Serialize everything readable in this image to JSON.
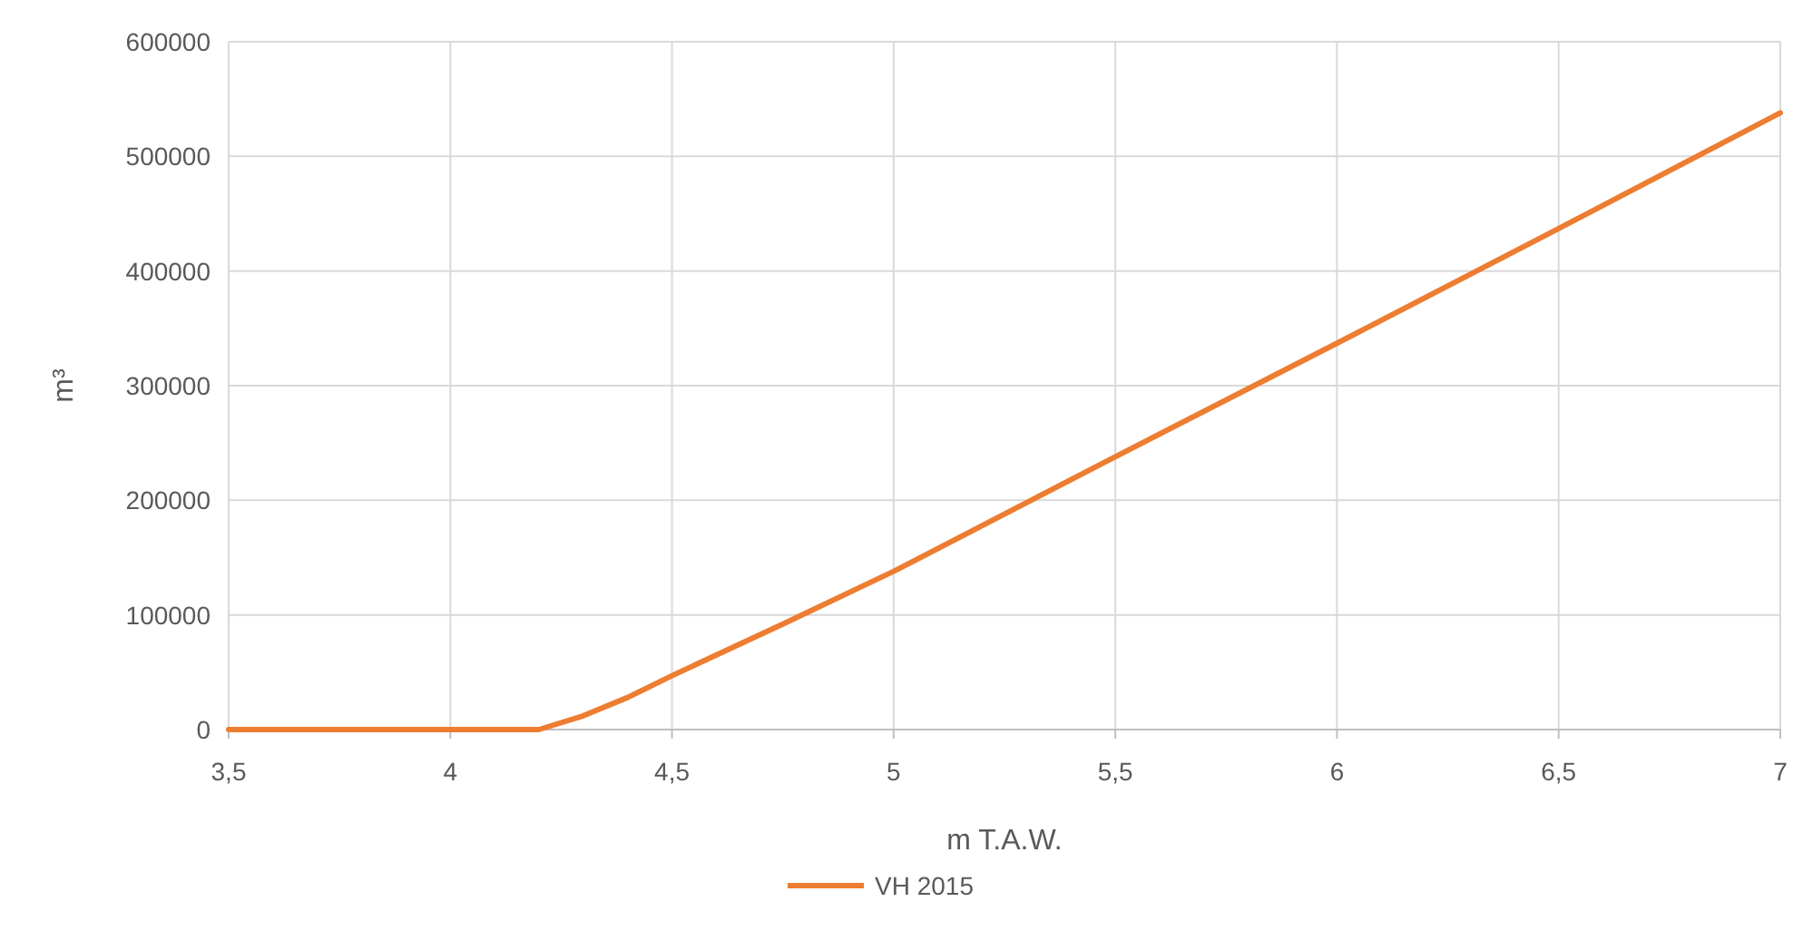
{
  "chart_data": {
    "type": "line",
    "xlabel": "m T.A.W.",
    "ylabel": "m³",
    "xlim": [
      3.5,
      7
    ],
    "xticks": [
      {
        "value": 3.5,
        "label": "3,5"
      },
      4,
      {
        "value": 4.5,
        "label": "4,5"
      },
      5,
      {
        "value": 5.5,
        "label": "5,5"
      },
      6,
      {
        "value": 6.5,
        "label": "6,5"
      },
      7
    ],
    "ylim": [
      0,
      600000
    ],
    "yticks": [
      0,
      100000,
      200000,
      300000,
      400000,
      500000,
      600000
    ],
    "grid": true,
    "legend": "bottom",
    "marker": "none",
    "line_style": "solid",
    "series": [
      {
        "name": "VH 2015",
        "color": "#ed7d31",
        "x": [
          3.5,
          4.2,
          4.3,
          4.4,
          4.5,
          4.75,
          5,
          5.5,
          6,
          6.5,
          7
        ],
        "values": [
          0,
          0,
          12000,
          28000,
          47000,
          92000,
          138000,
          238000,
          337000,
          437000,
          538000
        ]
      }
    ]
  }
}
